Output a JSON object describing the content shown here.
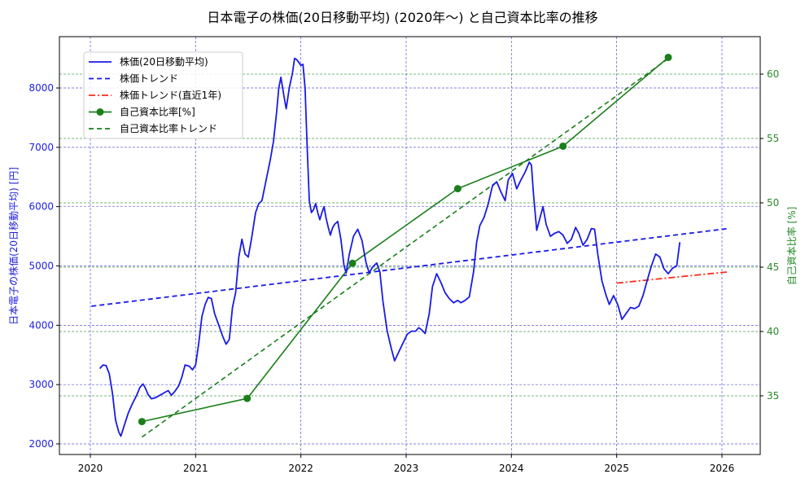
{
  "title": "日本電子の株価(20日移動平均) (2020年〜) と自己資本比率の推移",
  "colors": {
    "price": "#1a1ae6",
    "price_trend": "#1a1ae6",
    "recent_trend": "#ff2a1a",
    "equity": "#1a7f1a",
    "equity_trend": "#1a7f1a",
    "left_axis": "#2020e0",
    "right_axis": "#2a8a2a",
    "grid_left": "#5a5ad6",
    "grid_right": "#4aa04a"
  },
  "chart_data": {
    "type": "line",
    "title": "日本電子の株価(20日移動平均) (2020年〜) と自己資本比率の推移",
    "xlabel": "",
    "ylabel_left": "日本電子の株価(20日移動平均) [円]",
    "ylabel_right": "自己資本比率 [%]",
    "xlim": [
      2019.71,
      2026.36
    ],
    "ylim_left": [
      1810,
      8870
    ],
    "ylim_right": [
      30.7,
      63.2
    ],
    "x_ticks": [
      "2020",
      "2021",
      "2022",
      "2023",
      "2024",
      "2025",
      "2026"
    ],
    "y_ticks_left": [
      "2000",
      "3000",
      "4000",
      "5000",
      "6000",
      "7000",
      "8000"
    ],
    "y_ticks_right": [
      "35",
      "40",
      "45",
      "50",
      "55",
      "60"
    ],
    "grid": true,
    "legend_position": "upper left",
    "legend": [
      "株価(20日移動平均)",
      "株価トレンド",
      "株価トレンド(直近1年)",
      "自己資本比率[%]",
      "自己資本比率トレンド"
    ],
    "series": [
      {
        "name": "株価(20日移動平均)",
        "axis": "left",
        "style": "solid",
        "points": [
          [
            2020.09,
            3270
          ],
          [
            2020.12,
            3330
          ],
          [
            2020.15,
            3320
          ],
          [
            2020.18,
            3180
          ],
          [
            2020.21,
            2850
          ],
          [
            2020.24,
            2400
          ],
          [
            2020.27,
            2200
          ],
          [
            2020.29,
            2130
          ],
          [
            2020.32,
            2300
          ],
          [
            2020.36,
            2520
          ],
          [
            2020.4,
            2680
          ],
          [
            2020.44,
            2820
          ],
          [
            2020.47,
            2950
          ],
          [
            2020.5,
            3010
          ],
          [
            2020.52,
            2950
          ],
          [
            2020.55,
            2830
          ],
          [
            2020.58,
            2760
          ],
          [
            2020.62,
            2780
          ],
          [
            2020.66,
            2820
          ],
          [
            2020.7,
            2860
          ],
          [
            2020.74,
            2900
          ],
          [
            2020.77,
            2820
          ],
          [
            2020.8,
            2880
          ],
          [
            2020.84,
            2980
          ],
          [
            2020.87,
            3130
          ],
          [
            2020.9,
            3330
          ],
          [
            2020.94,
            3310
          ],
          [
            2020.97,
            3250
          ],
          [
            2021.0,
            3330
          ],
          [
            2021.03,
            3700
          ],
          [
            2021.06,
            4150
          ],
          [
            2021.09,
            4350
          ],
          [
            2021.12,
            4470
          ],
          [
            2021.15,
            4450
          ],
          [
            2021.18,
            4200
          ],
          [
            2021.22,
            4000
          ],
          [
            2021.26,
            3800
          ],
          [
            2021.29,
            3680
          ],
          [
            2021.32,
            3760
          ],
          [
            2021.35,
            4300
          ],
          [
            2021.38,
            4550
          ],
          [
            2021.41,
            5150
          ],
          [
            2021.44,
            5450
          ],
          [
            2021.47,
            5200
          ],
          [
            2021.5,
            5150
          ],
          [
            2021.53,
            5450
          ],
          [
            2021.57,
            5900
          ],
          [
            2021.6,
            6050
          ],
          [
            2021.63,
            6100
          ],
          [
            2021.67,
            6450
          ],
          [
            2021.71,
            6800
          ],
          [
            2021.74,
            7100
          ],
          [
            2021.77,
            7600
          ],
          [
            2021.79,
            8000
          ],
          [
            2021.81,
            8180
          ],
          [
            2021.84,
            7850
          ],
          [
            2021.86,
            7650
          ],
          [
            2021.89,
            8000
          ],
          [
            2021.92,
            8250
          ],
          [
            2021.94,
            8500
          ],
          [
            2021.96,
            8480
          ],
          [
            2021.98,
            8430
          ],
          [
            2022.0,
            8380
          ],
          [
            2022.02,
            8400
          ],
          [
            2022.04,
            8000
          ],
          [
            2022.06,
            7000
          ],
          [
            2022.08,
            6100
          ],
          [
            2022.1,
            5900
          ],
          [
            2022.12,
            5950
          ],
          [
            2022.14,
            6050
          ],
          [
            2022.16,
            5900
          ],
          [
            2022.18,
            5780
          ],
          [
            2022.2,
            5900
          ],
          [
            2022.22,
            6000
          ],
          [
            2022.24,
            5800
          ],
          [
            2022.26,
            5650
          ],
          [
            2022.28,
            5520
          ],
          [
            2022.3,
            5640
          ],
          [
            2022.32,
            5700
          ],
          [
            2022.35,
            5750
          ],
          [
            2022.38,
            5450
          ],
          [
            2022.41,
            5000
          ],
          [
            2022.43,
            4880
          ],
          [
            2022.46,
            5200
          ],
          [
            2022.5,
            5500
          ],
          [
            2022.54,
            5620
          ],
          [
            2022.58,
            5430
          ],
          [
            2022.62,
            5050
          ],
          [
            2022.65,
            4880
          ],
          [
            2022.68,
            4980
          ],
          [
            2022.72,
            5050
          ],
          [
            2022.75,
            4900
          ],
          [
            2022.78,
            4400
          ],
          [
            2022.82,
            3900
          ],
          [
            2022.86,
            3600
          ],
          [
            2022.89,
            3400
          ],
          [
            2022.93,
            3550
          ],
          [
            2022.97,
            3700
          ],
          [
            2023.01,
            3850
          ],
          [
            2023.05,
            3900
          ],
          [
            2023.09,
            3900
          ],
          [
            2023.12,
            3960
          ],
          [
            2023.15,
            3920
          ],
          [
            2023.18,
            3860
          ],
          [
            2023.22,
            4200
          ],
          [
            2023.25,
            4650
          ],
          [
            2023.29,
            4870
          ],
          [
            2023.33,
            4720
          ],
          [
            2023.37,
            4550
          ],
          [
            2023.41,
            4450
          ],
          [
            2023.45,
            4380
          ],
          [
            2023.49,
            4420
          ],
          [
            2023.52,
            4380
          ],
          [
            2023.56,
            4420
          ],
          [
            2023.6,
            4480
          ],
          [
            2023.64,
            4900
          ],
          [
            2023.67,
            5400
          ],
          [
            2023.7,
            5680
          ],
          [
            2023.74,
            5820
          ],
          [
            2023.78,
            6050
          ],
          [
            2023.82,
            6350
          ],
          [
            2023.86,
            6420
          ],
          [
            2023.9,
            6250
          ],
          [
            2023.94,
            6100
          ],
          [
            2023.97,
            6450
          ],
          [
            2024.01,
            6560
          ],
          [
            2024.05,
            6300
          ],
          [
            2024.09,
            6450
          ],
          [
            2024.13,
            6580
          ],
          [
            2024.17,
            6750
          ],
          [
            2024.19,
            6700
          ],
          [
            2024.21,
            6200
          ],
          [
            2024.24,
            5600
          ],
          [
            2024.27,
            5800
          ],
          [
            2024.3,
            6000
          ],
          [
            2024.33,
            5700
          ],
          [
            2024.37,
            5500
          ],
          [
            2024.41,
            5550
          ],
          [
            2024.45,
            5580
          ],
          [
            2024.49,
            5520
          ],
          [
            2024.53,
            5380
          ],
          [
            2024.57,
            5450
          ],
          [
            2024.61,
            5650
          ],
          [
            2024.64,
            5550
          ],
          [
            2024.68,
            5350
          ],
          [
            2024.72,
            5450
          ],
          [
            2024.76,
            5630
          ],
          [
            2024.79,
            5620
          ],
          [
            2024.82,
            5200
          ],
          [
            2024.86,
            4750
          ],
          [
            2024.9,
            4500
          ],
          [
            2024.93,
            4350
          ],
          [
            2024.97,
            4500
          ],
          [
            2025.01,
            4350
          ],
          [
            2025.05,
            4100
          ],
          [
            2025.09,
            4200
          ],
          [
            2025.13,
            4300
          ],
          [
            2025.17,
            4280
          ],
          [
            2025.21,
            4320
          ],
          [
            2025.25,
            4500
          ],
          [
            2025.29,
            4760
          ],
          [
            2025.33,
            5000
          ],
          [
            2025.37,
            5200
          ],
          [
            2025.41,
            5150
          ],
          [
            2025.45,
            4950
          ],
          [
            2025.49,
            4870
          ],
          [
            2025.53,
            4960
          ],
          [
            2025.57,
            5000
          ],
          [
            2025.6,
            5400
          ]
        ]
      },
      {
        "name": "株価トレンド",
        "axis": "left",
        "style": "dashed",
        "points": [
          [
            2020.01,
            4320
          ],
          [
            2026.06,
            5630
          ]
        ]
      },
      {
        "name": "株価トレンド(直近1年)",
        "axis": "left",
        "style": "dashdot",
        "points": [
          [
            2025.0,
            4710
          ],
          [
            2026.06,
            4900
          ]
        ]
      },
      {
        "name": "自己資本比率[%]",
        "axis": "right",
        "style": "solid-marker",
        "points": [
          [
            2020.49,
            33.0
          ],
          [
            2021.49,
            34.8
          ],
          [
            2022.49,
            45.3
          ],
          [
            2023.49,
            51.1
          ],
          [
            2024.49,
            54.4
          ],
          [
            2025.49,
            61.3
          ]
        ]
      },
      {
        "name": "自己資本比率トレンド",
        "axis": "right",
        "style": "dashed",
        "points": [
          [
            2020.49,
            31.8
          ],
          [
            2025.49,
            61.2
          ]
        ]
      }
    ]
  }
}
